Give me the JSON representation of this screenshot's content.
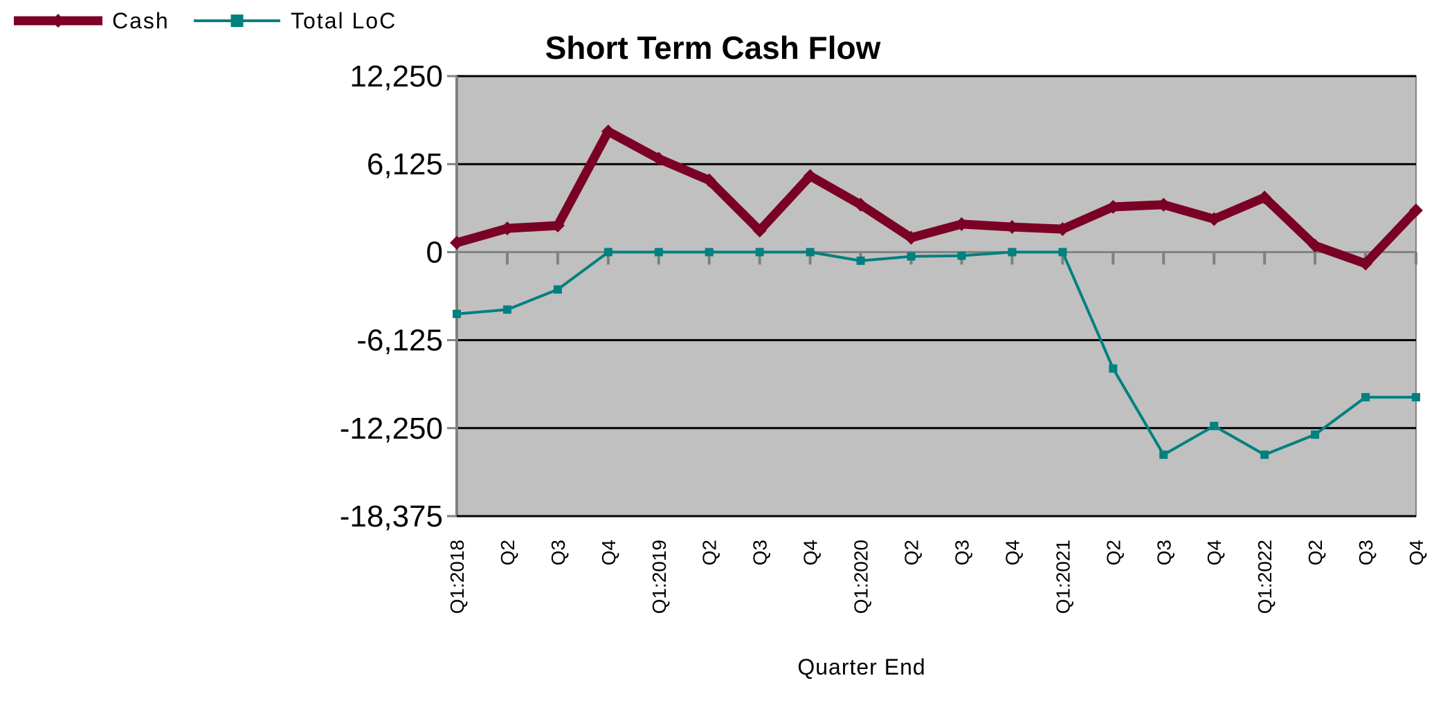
{
  "chart_data": {
    "type": "line",
    "title": "Short Term Cash Flow",
    "xlabel": "Quarter End",
    "ylabel": "",
    "ylim": [
      -18375,
      12250
    ],
    "yticks": [
      12250,
      6125,
      0,
      -6125,
      -12250,
      -18375
    ],
    "ytick_labels": [
      "12,250",
      "6,125",
      "0",
      "-6,125",
      "-12,250",
      "-18,375"
    ],
    "categories": [
      "Q1:2018",
      "Q2",
      "Q3",
      "Q4",
      "Q1:2019",
      "Q2",
      "Q3",
      "Q4",
      "Q1:2020",
      "Q2",
      "Q3",
      "Q4",
      "Q1:2021",
      "Q2",
      "Q3",
      "Q4",
      "Q1:2022",
      "Q2",
      "Q3",
      "Q4"
    ],
    "grid": true,
    "legend": "top-left",
    "series": [
      {
        "name": "Cash",
        "color": "#7b0025",
        "marker": "diamond",
        "values": [
          650,
          1650,
          1850,
          8400,
          6500,
          5000,
          1500,
          5300,
          3300,
          1000,
          1950,
          1750,
          1600,
          3150,
          3300,
          2300,
          3800,
          450,
          -800,
          2900
        ]
      },
      {
        "name": "Total LoC",
        "color": "#00807f",
        "marker": "square",
        "values": [
          -4300,
          -4000,
          -2600,
          0,
          0,
          0,
          0,
          0,
          -600,
          -300,
          -250,
          0,
          0,
          -8100,
          -14100,
          -12100,
          -14100,
          -12700,
          -10100,
          -10100
        ]
      }
    ]
  }
}
